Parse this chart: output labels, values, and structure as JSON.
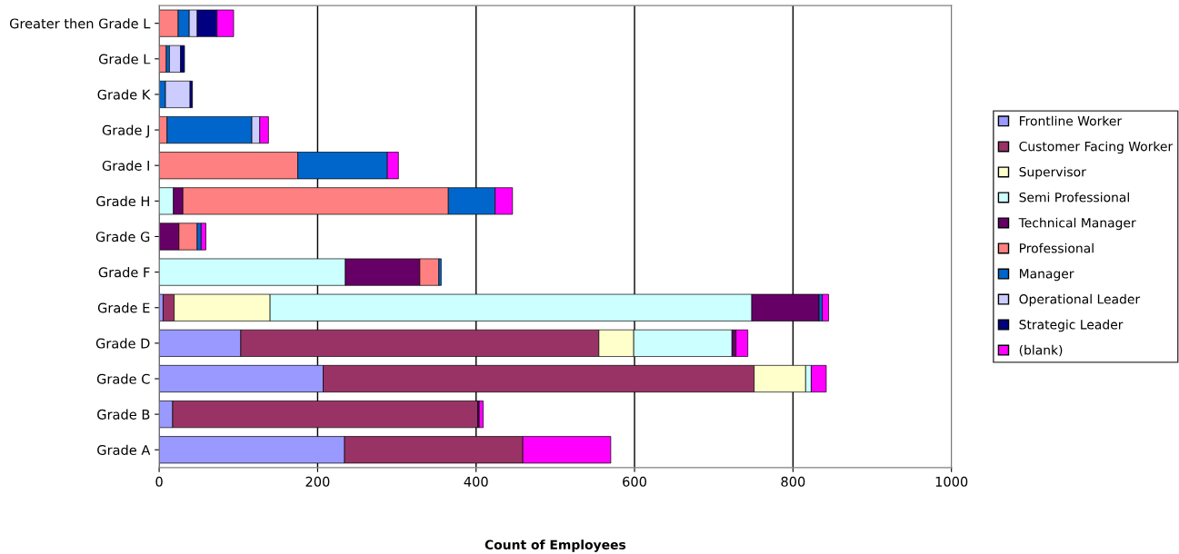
{
  "chart_data": {
    "type": "bar",
    "orientation": "horizontal",
    "stacked": true,
    "xlabel": "Count of Employees",
    "categories": [
      "Greater then Grade L",
      "Grade L",
      "Grade K",
      "Grade J",
      "Grade I",
      "Grade H",
      "Grade G",
      "Grade F",
      "Grade E",
      "Grade D",
      "Grade C",
      "Grade B",
      "Grade A"
    ],
    "xlim": [
      0,
      1000
    ],
    "xticks": [
      0,
      200,
      400,
      600,
      800,
      1000
    ],
    "grid": "x",
    "legend": "right",
    "series": [
      {
        "name": "Frontline Worker",
        "color": "#9999ff",
        "values": [
          null,
          null,
          null,
          null,
          null,
          null,
          null,
          null,
          5,
          103,
          207,
          17,
          234
        ]
      },
      {
        "name": "Customer Facing Worker",
        "color": "#993366",
        "values": [
          null,
          null,
          null,
          null,
          null,
          null,
          null,
          null,
          14,
          452,
          544,
          385,
          225
        ]
      },
      {
        "name": "Supervisor",
        "color": "#ffffcc",
        "values": [
          null,
          null,
          null,
          null,
          null,
          null,
          null,
          null,
          121,
          44,
          65,
          null,
          null
        ]
      },
      {
        "name": "Semi Professional",
        "color": "#ccffff",
        "values": [
          null,
          null,
          null,
          null,
          null,
          18,
          null,
          235,
          608,
          124,
          7,
          null,
          null
        ]
      },
      {
        "name": "Technical Manager",
        "color": "#660066",
        "values": [
          null,
          null,
          null,
          null,
          null,
          12,
          25,
          94,
          85,
          5,
          null,
          2,
          null
        ]
      },
      {
        "name": "Professional",
        "color": "#ff8080",
        "values": [
          24,
          9,
          null,
          10,
          175,
          335,
          23,
          24,
          null,
          null,
          null,
          null,
          null
        ]
      },
      {
        "name": "Manager",
        "color": "#0066cc",
        "values": [
          14,
          4,
          8,
          107,
          113,
          59,
          5,
          3,
          4,
          null,
          null,
          null,
          null
        ]
      },
      {
        "name": "Operational Leader",
        "color": "#ccccff",
        "values": [
          10,
          14,
          31,
          10,
          null,
          null,
          null,
          null,
          null,
          null,
          null,
          null,
          null
        ]
      },
      {
        "name": "Strategic Leader",
        "color": "#000080",
        "values": [
          25,
          5,
          3,
          null,
          null,
          null,
          null,
          null,
          null,
          null,
          null,
          null,
          null
        ]
      },
      {
        "name": "(blank)",
        "color": "#ff00ff",
        "values": [
          21,
          null,
          null,
          11,
          14,
          22,
          6,
          null,
          8,
          15,
          19,
          5,
          111
        ]
      }
    ]
  }
}
